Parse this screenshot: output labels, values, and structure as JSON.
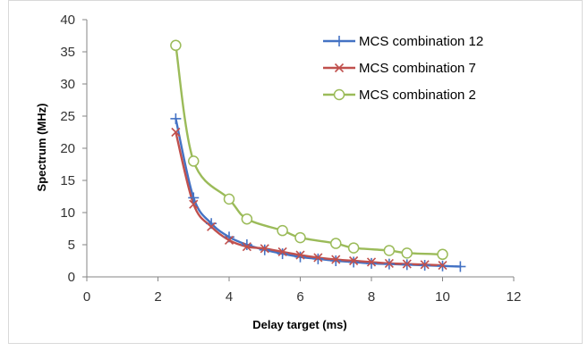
{
  "chart_data": {
    "type": "scatter",
    "xlabel": "Delay target (ms)",
    "ylabel": "Spectrum (MHz)",
    "xlim": [
      0,
      12
    ],
    "ylim": [
      0,
      40
    ],
    "xticks": [
      0,
      2,
      4,
      6,
      8,
      10,
      12
    ],
    "yticks": [
      0,
      5,
      10,
      15,
      20,
      25,
      30,
      35,
      40
    ],
    "grid": false,
    "legend_position": "top-right",
    "smooth_lines": true,
    "series": [
      {
        "name": "MCS combination 12",
        "color": "#4472c4",
        "marker": "plus",
        "x": [
          2.5,
          3,
          3.5,
          4,
          4.5,
          5,
          5.5,
          6,
          6.5,
          7,
          7.5,
          8,
          8.5,
          9,
          9.5,
          10,
          10.5
        ],
        "y": [
          24.6,
          12.3,
          8.3,
          6.2,
          5.0,
          4.2,
          3.6,
          3.1,
          2.8,
          2.5,
          2.3,
          2.1,
          2.0,
          1.9,
          1.8,
          1.7,
          1.6
        ]
      },
      {
        "name": "MCS combination 7",
        "color": "#c0504d",
        "marker": "x",
        "x": [
          2.5,
          3,
          3.5,
          4,
          4.5,
          5,
          5.5,
          6,
          6.5,
          7,
          7.5,
          8,
          8.5,
          9,
          9.5,
          10
        ],
        "y": [
          22.5,
          11.3,
          7.8,
          5.7,
          4.7,
          4.4,
          3.9,
          3.4,
          3.0,
          2.7,
          2.5,
          2.3,
          2.1,
          2.0,
          1.9,
          1.8
        ]
      },
      {
        "name": "MCS combination 2",
        "color": "#9bbb59",
        "marker": "circle",
        "x": [
          2.5,
          3,
          4,
          4.5,
          5.5,
          6,
          7,
          7.5,
          8.5,
          9,
          10
        ],
        "y": [
          36.0,
          18.0,
          12.1,
          9.0,
          7.2,
          6.1,
          5.2,
          4.5,
          4.1,
          3.7,
          3.5
        ]
      }
    ]
  }
}
